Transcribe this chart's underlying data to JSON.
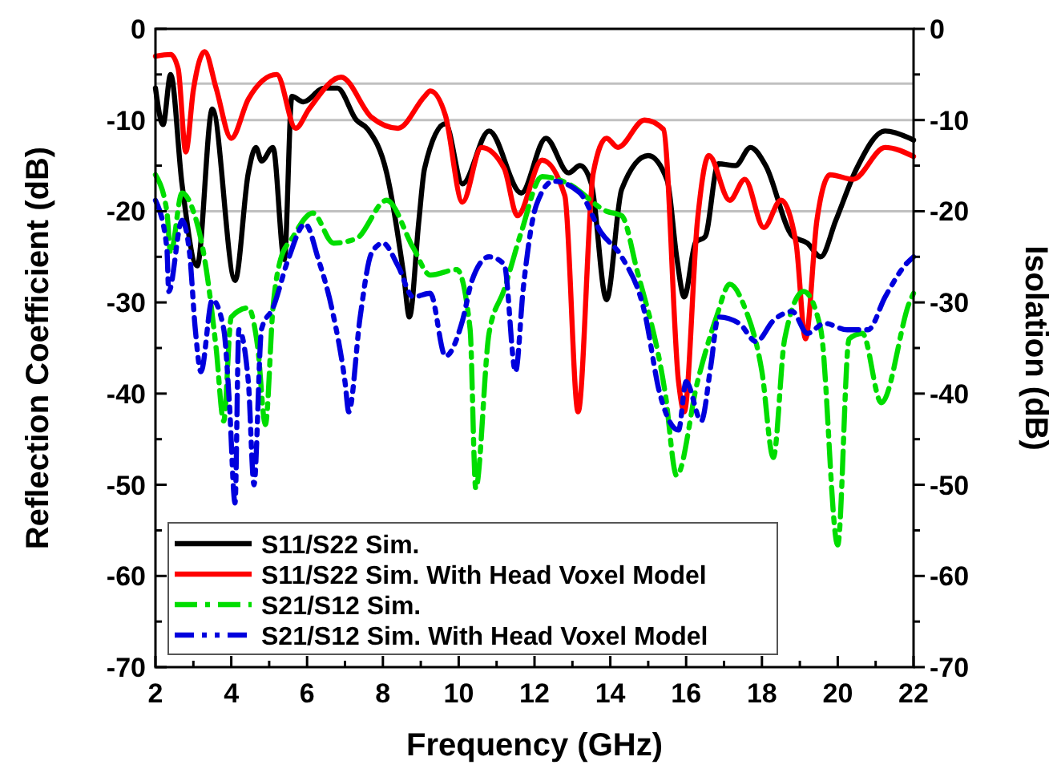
{
  "chart_data": {
    "type": "line",
    "xlabel": "Frequency (GHz)",
    "ylabel": "Reflection Coefficient (dB)",
    "y2label": "Isolation (dB)",
    "xlim": [
      2,
      22
    ],
    "ylim": [
      -70,
      0
    ],
    "y2lim": [
      -70,
      0
    ],
    "xticks": [
      2,
      {
        "value": 3,
        "label": null
      },
      4,
      {
        "value": 5,
        "label": null
      },
      6,
      {
        "value": 7,
        "label": null
      },
      8,
      {
        "value": 9,
        "label": null
      },
      10,
      {
        "value": 11,
        "label": null
      },
      12,
      {
        "value": 13,
        "label": null
      },
      14,
      {
        "value": 15,
        "label": null
      },
      16,
      {
        "value": 17,
        "label": null
      },
      18,
      {
        "value": 19,
        "label": null
      },
      20,
      {
        "value": 21,
        "label": null
      },
      22
    ],
    "yticks": [
      -70,
      {
        "value": -65,
        "label": null
      },
      -60,
      {
        "value": -55,
        "label": null
      },
      -50,
      {
        "value": -45,
        "label": null
      },
      -40,
      {
        "value": -35,
        "label": null
      },
      -30,
      {
        "value": -25,
        "label": null
      },
      -20,
      {
        "value": -15,
        "label": null
      },
      -10,
      {
        "value": -5,
        "label": null
      },
      0
    ],
    "y2ticks": [
      -70,
      {
        "value": -65,
        "label": null
      },
      -60,
      {
        "value": -55,
        "label": null
      },
      -50,
      {
        "value": -45,
        "label": null
      },
      -40,
      {
        "value": -35,
        "label": null
      },
      -30,
      {
        "value": -25,
        "label": null
      },
      -20,
      {
        "value": -15,
        "label": null
      },
      -10,
      {
        "value": -5,
        "label": null
      },
      0
    ],
    "grid": false,
    "legend": "bottom left",
    "marker": "none",
    "ref_lines": [
      {
        "axis": "y",
        "value": -6,
        "color": "#c0c0c0"
      },
      {
        "axis": "y",
        "value": -10,
        "color": "#c0c0c0"
      },
      {
        "axis": "y",
        "value": -20,
        "color": "#c0c0c0"
      }
    ],
    "series": [
      {
        "name": "S11/S22 Sim.",
        "color": "#000000",
        "line_style": "solid",
        "x": [
          2,
          2.2,
          2.4,
          2.7,
          3.1,
          3.5,
          4.1,
          4.45,
          4.65,
          4.8,
          5.1,
          5.4,
          5.6,
          5.9,
          6.45,
          6.8,
          7.3,
          7.6,
          8.1,
          8.55,
          8.7,
          8.95,
          9.1,
          9.65,
          10.1,
          10.8,
          11.65,
          12.3,
          12.9,
          13.2,
          13.5,
          13.9,
          14.3,
          15,
          15.5,
          15.75,
          15.95,
          16.25,
          16.5,
          16.85,
          17.3,
          17.7,
          18.1,
          18.8,
          19.2,
          19.55,
          19.95,
          20.5,
          21.25,
          21.9,
          22
        ],
        "values": [
          -6.5,
          -10.5,
          -5,
          -17,
          -26,
          -8.8,
          -27.6,
          -15.8,
          -13,
          -14.5,
          -13,
          -25.3,
          -7.4,
          -8,
          -6.5,
          -6.5,
          -10,
          -11,
          -15.8,
          -27,
          -31.6,
          -21,
          -15.3,
          -10.4,
          -17,
          -11.2,
          -18,
          -12,
          -15.8,
          -15,
          -17,
          -29.7,
          -17.6,
          -13.9,
          -16.6,
          -25,
          -29.4,
          -23.4,
          -22.8,
          -14.8,
          -15,
          -13,
          -15,
          -22.7,
          -23.5,
          -25,
          -21,
          -15.3,
          -11.2,
          -12,
          -12.2
        ]
      },
      {
        "name": "S11/S22 Sim. With Head Voxel Model",
        "color": "#ff0000",
        "line_style": "solid",
        "x": [
          2,
          2.4,
          2.6,
          2.8,
          3,
          3.3,
          3.6,
          4,
          4.45,
          5.2,
          5.7,
          6.05,
          6.9,
          7.7,
          8.4,
          9.1,
          9.25,
          9.65,
          10.1,
          10.6,
          11.2,
          11.55,
          12.2,
          12.8,
          13.15,
          13.55,
          13.9,
          14.2,
          14.9,
          15.4,
          15.8,
          15.95,
          16.3,
          16.6,
          17.15,
          17.55,
          18.05,
          18.5,
          18.9,
          19.15,
          19.45,
          19.8,
          20.4,
          21.25,
          22
        ],
        "values": [
          -3,
          -2.8,
          -4.4,
          -13.5,
          -6.7,
          -2.5,
          -6.5,
          -12,
          -7.7,
          -5,
          -10.9,
          -8.8,
          -5.3,
          -9.7,
          -10.9,
          -7.4,
          -6.8,
          -9.5,
          -19,
          -13,
          -15.3,
          -20.5,
          -14.4,
          -18.3,
          -42,
          -15.8,
          -12,
          -13,
          -10,
          -11,
          -38.7,
          -42,
          -21,
          -13.9,
          -18.8,
          -16.5,
          -21.8,
          -18.8,
          -23.5,
          -34,
          -21,
          -16,
          -16.5,
          -13,
          -14
        ]
      },
      {
        "name": "S21/S12 Sim.",
        "color": "#00dd00",
        "line_style": "dashed",
        "x": [
          2,
          2.3,
          2.4,
          2.7,
          3,
          3.3,
          3.6,
          3.8,
          4,
          4.45,
          4.7,
          4.9,
          5.1,
          5.3,
          5.6,
          6.15,
          6.7,
          7.3,
          8.1,
          8.8,
          9.25,
          9.95,
          10.3,
          10.45,
          10.8,
          11.2,
          11.65,
          12.2,
          12.9,
          13.9,
          14.3,
          14.7,
          15.45,
          15.75,
          16.3,
          16.8,
          17.15,
          17.55,
          18,
          18.3,
          18.6,
          19.1,
          19.55,
          20,
          20.3,
          20.65,
          21.15,
          21.9,
          22
        ],
        "values": [
          -16,
          -20,
          -24.6,
          -18,
          -20,
          -25.3,
          -35,
          -43,
          -31.6,
          -30.6,
          -35,
          -43.4,
          -30.6,
          -25.3,
          -23,
          -20.2,
          -23.5,
          -23,
          -18.8,
          -24,
          -27,
          -26.4,
          -32.9,
          -50.4,
          -33.4,
          -28.6,
          -22.3,
          -16.2,
          -17,
          -20,
          -20.5,
          -26.4,
          -40,
          -49,
          -38.7,
          -31.6,
          -28,
          -30.6,
          -37.6,
          -47,
          -34,
          -28.8,
          -32.9,
          -56.6,
          -34,
          -33.4,
          -41,
          -29.9,
          -29
        ]
      },
      {
        "name": "S21/S12 Sim. With Head Voxel Model",
        "color": "#0000dd",
        "line_style": "dotted",
        "x": [
          2,
          2.3,
          2.35,
          2.7,
          2.9,
          3.05,
          3.2,
          3.5,
          3.8,
          3.95,
          4.1,
          4.2,
          4.45,
          4.6,
          4.8,
          5.1,
          5.5,
          5.95,
          6.3,
          6.65,
          7,
          7.1,
          7.4,
          7.7,
          8,
          8.4,
          8.8,
          9.25,
          9.65,
          10.1,
          10.35,
          10.8,
          11.2,
          11.5,
          11.7,
          12.05,
          12.5,
          13.2,
          13.75,
          14.3,
          14.9,
          15.3,
          15.8,
          16,
          16.4,
          16.65,
          16.85,
          17.4,
          17.85,
          18.3,
          18.8,
          19.2,
          19.65,
          20.25,
          20.8,
          21.25,
          21.8,
          22
        ],
        "values": [
          -18.8,
          -24,
          -28.8,
          -21,
          -24.6,
          -32.9,
          -37.6,
          -29.7,
          -32.9,
          -41,
          -52,
          -33,
          -38.7,
          -50,
          -32.9,
          -30.6,
          -25.3,
          -21.4,
          -25.3,
          -30.6,
          -38.7,
          -42,
          -31.6,
          -24.6,
          -23.5,
          -26,
          -29.4,
          -29,
          -35.9,
          -32,
          -27.6,
          -25,
          -25.8,
          -37.6,
          -28.6,
          -19.3,
          -16.7,
          -18,
          -22.3,
          -25,
          -31,
          -39.9,
          -44,
          -38.7,
          -43,
          -37,
          -31.6,
          -32.3,
          -34.3,
          -32,
          -31,
          -33.4,
          -32.3,
          -33,
          -33,
          -29.4,
          -25.8,
          -25
        ]
      }
    ]
  }
}
